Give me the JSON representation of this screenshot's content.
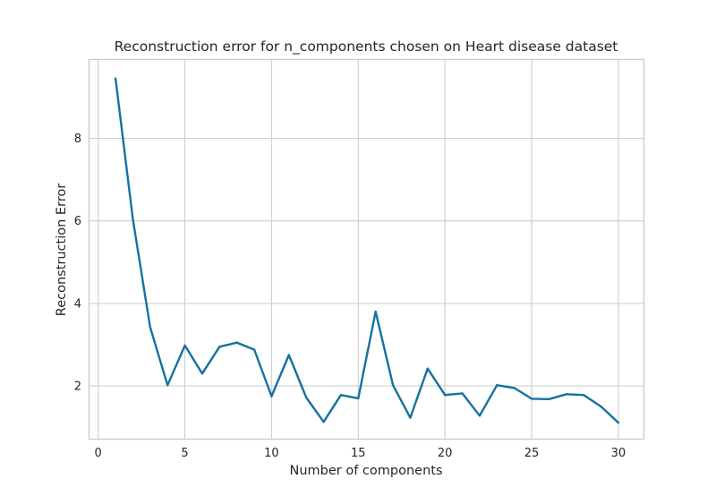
{
  "chart_data": {
    "type": "line",
    "title": "Reconstruction error for n_components chosen on Heart disease dataset",
    "xlabel": "Number of components",
    "ylabel": "Reconstruction Error",
    "xlim": [
      -0.5,
      31.5
    ],
    "ylim": [
      0.7,
      9.9
    ],
    "xticks": [
      0,
      5,
      10,
      15,
      20,
      25,
      30
    ],
    "yticks": [
      2,
      4,
      6,
      8
    ],
    "grid": true,
    "colors": {
      "line": "#1472a0",
      "grid": "#d0d0d0",
      "frame": "#cccccc",
      "text": "#262626"
    },
    "series": [
      {
        "name": "Reconstruction Error",
        "x": [
          1,
          2,
          3,
          4,
          5,
          6,
          7,
          8,
          9,
          10,
          11,
          12,
          13,
          14,
          15,
          16,
          17,
          18,
          19,
          20,
          21,
          22,
          23,
          24,
          25,
          26,
          27,
          28,
          29,
          30
        ],
        "values": [
          9.45,
          6.05,
          3.42,
          2.02,
          2.98,
          2.3,
          2.95,
          3.05,
          2.88,
          1.75,
          2.75,
          1.72,
          1.13,
          1.78,
          1.7,
          3.8,
          2.02,
          1.23,
          2.42,
          1.78,
          1.82,
          1.28,
          2.02,
          1.95,
          1.69,
          1.68,
          1.8,
          1.78,
          1.5,
          1.11
        ]
      }
    ]
  }
}
